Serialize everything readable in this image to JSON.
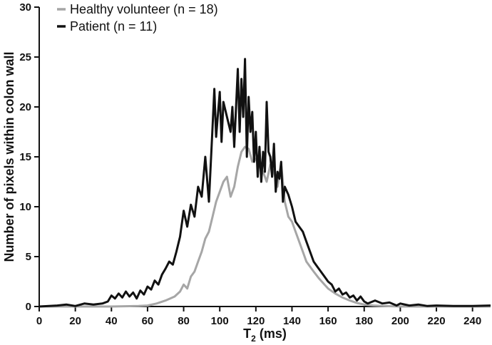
{
  "chart_data": {
    "type": "line",
    "xlabel": "T",
    "xlabel_subscript": "2",
    "xlabel_unit": " (ms)",
    "ylabel": "Number of pixels within colon wall",
    "xlim": [
      0,
      250
    ],
    "ylim": [
      0,
      30
    ],
    "x_ticks": [
      0,
      20,
      40,
      60,
      80,
      100,
      120,
      140,
      160,
      180,
      200,
      220,
      240
    ],
    "y_ticks": [
      0,
      5,
      10,
      15,
      20,
      25,
      30
    ],
    "grid": false,
    "legend_position": "top-left",
    "series": [
      {
        "name": "Healthy volunteer (n = 18)",
        "color": "#a6a6a6",
        "points": [
          [
            0,
            0
          ],
          [
            20,
            0
          ],
          [
            40,
            0
          ],
          [
            55,
            0.05
          ],
          [
            60,
            0.1
          ],
          [
            65,
            0.3
          ],
          [
            70,
            0.6
          ],
          [
            75,
            1.0
          ],
          [
            78,
            1.5
          ],
          [
            80,
            2.2
          ],
          [
            82,
            1.8
          ],
          [
            84,
            3.0
          ],
          [
            86,
            3.5
          ],
          [
            88,
            4.5
          ],
          [
            90,
            5.5
          ],
          [
            92,
            6.8
          ],
          [
            94,
            7.5
          ],
          [
            96,
            9.0
          ],
          [
            98,
            10.5
          ],
          [
            100,
            11.5
          ],
          [
            102,
            12.5
          ],
          [
            104,
            13.0
          ],
          [
            106,
            11.0
          ],
          [
            108,
            12.0
          ],
          [
            110,
            14.0
          ],
          [
            112,
            15.5
          ],
          [
            114,
            16.0
          ],
          [
            116,
            15.8
          ],
          [
            118,
            14.5
          ],
          [
            120,
            14.8
          ],
          [
            122,
            14.0
          ],
          [
            124,
            13.5
          ],
          [
            126,
            12.5
          ],
          [
            128,
            14.2
          ],
          [
            130,
            13.5
          ],
          [
            132,
            12.0
          ],
          [
            134,
            14.3
          ],
          [
            136,
            10.5
          ],
          [
            138,
            9.0
          ],
          [
            140,
            8.5
          ],
          [
            142,
            7.5
          ],
          [
            144,
            6.5
          ],
          [
            146,
            5.5
          ],
          [
            148,
            4.5
          ],
          [
            150,
            4.0
          ],
          [
            152,
            3.5
          ],
          [
            155,
            2.8
          ],
          [
            158,
            2.2
          ],
          [
            160,
            1.8
          ],
          [
            164,
            1.3
          ],
          [
            168,
            0.9
          ],
          [
            172,
            0.6
          ],
          [
            176,
            0.35
          ],
          [
            180,
            0.2
          ],
          [
            185,
            0.1
          ],
          [
            190,
            0.05
          ],
          [
            200,
            0
          ],
          [
            220,
            0
          ],
          [
            250,
            0
          ]
        ]
      },
      {
        "name": "Patient (n = 11)",
        "color": "#111111",
        "points": [
          [
            0,
            0
          ],
          [
            10,
            0.1
          ],
          [
            15,
            0.2
          ],
          [
            20,
            0.05
          ],
          [
            25,
            0.3
          ],
          [
            30,
            0.2
          ],
          [
            35,
            0.3
          ],
          [
            38,
            0.5
          ],
          [
            40,
            1.1
          ],
          [
            42,
            0.8
          ],
          [
            44,
            1.3
          ],
          [
            46,
            0.9
          ],
          [
            48,
            1.5
          ],
          [
            50,
            1.0
          ],
          [
            52,
            1.4
          ],
          [
            54,
            0.8
          ],
          [
            56,
            1.6
          ],
          [
            58,
            1.2
          ],
          [
            60,
            2.0
          ],
          [
            62,
            1.7
          ],
          [
            64,
            2.6
          ],
          [
            66,
            2.2
          ],
          [
            68,
            3.2
          ],
          [
            70,
            3.8
          ],
          [
            72,
            4.5
          ],
          [
            74,
            4.2
          ],
          [
            76,
            5.5
          ],
          [
            78,
            7.0
          ],
          [
            80,
            9.6
          ],
          [
            82,
            8.0
          ],
          [
            84,
            10.2
          ],
          [
            86,
            9.0
          ],
          [
            88,
            12.0
          ],
          [
            90,
            11.0
          ],
          [
            92,
            15.0
          ],
          [
            94,
            10.5
          ],
          [
            96,
            18.0
          ],
          [
            97,
            21.8
          ],
          [
            98,
            17.0
          ],
          [
            100,
            21.5
          ],
          [
            101,
            16.5
          ],
          [
            102,
            20.5
          ],
          [
            104,
            19.0
          ],
          [
            106,
            17.5
          ],
          [
            107,
            20.0
          ],
          [
            108,
            16.0
          ],
          [
            110,
            23.8
          ],
          [
            111,
            17.5
          ],
          [
            112,
            22.8
          ],
          [
            113,
            19.0
          ],
          [
            114,
            24.8
          ],
          [
            115,
            15.0
          ],
          [
            116,
            21.0
          ],
          [
            117,
            17.5
          ],
          [
            118,
            19.5
          ],
          [
            119,
            14.5
          ],
          [
            120,
            17.5
          ],
          [
            121,
            13.0
          ],
          [
            122,
            16.0
          ],
          [
            123,
            12.5
          ],
          [
            124,
            15.5
          ],
          [
            125,
            13.5
          ],
          [
            126,
            20.5
          ],
          [
            127,
            15.5
          ],
          [
            128,
            15.0
          ],
          [
            129,
            13.0
          ],
          [
            130,
            16.3
          ],
          [
            131,
            11.5
          ],
          [
            132,
            13.5
          ],
          [
            133,
            12.8
          ],
          [
            134,
            14.5
          ],
          [
            135,
            10.5
          ],
          [
            136,
            12.0
          ],
          [
            138,
            11.2
          ],
          [
            140,
            10.0
          ],
          [
            142,
            8.5
          ],
          [
            144,
            8.0
          ],
          [
            146,
            7.5
          ],
          [
            148,
            6.5
          ],
          [
            150,
            5.5
          ],
          [
            152,
            4.5
          ],
          [
            154,
            4.0
          ],
          [
            156,
            3.5
          ],
          [
            158,
            3.0
          ],
          [
            160,
            2.5
          ],
          [
            162,
            2.2
          ],
          [
            164,
            1.5
          ],
          [
            166,
            1.8
          ],
          [
            168,
            1.2
          ],
          [
            170,
            1.4
          ],
          [
            172,
            0.9
          ],
          [
            174,
            1.1
          ],
          [
            176,
            0.6
          ],
          [
            178,
            1.0
          ],
          [
            180,
            0.5
          ],
          [
            182,
            0.3
          ],
          [
            186,
            0.6
          ],
          [
            190,
            0.3
          ],
          [
            194,
            0.4
          ],
          [
            198,
            0.1
          ],
          [
            200,
            0.3
          ],
          [
            205,
            0.1
          ],
          [
            210,
            0.2
          ],
          [
            215,
            0.05
          ],
          [
            220,
            0.1
          ],
          [
            230,
            0.05
          ],
          [
            240,
            0.05
          ],
          [
            250,
            0.1
          ]
        ]
      }
    ]
  }
}
